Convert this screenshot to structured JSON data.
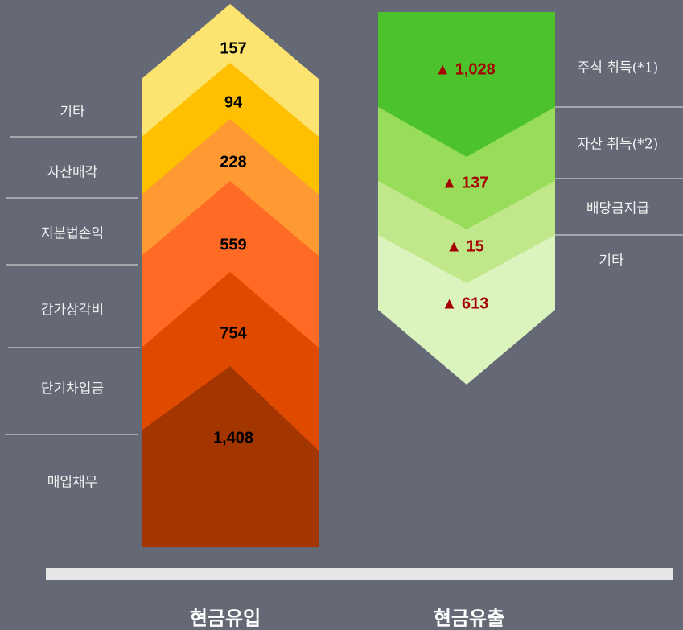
{
  "inflow": {
    "title": "현금유입",
    "items": [
      {
        "label": null,
        "value": "157"
      },
      {
        "label": "기타",
        "value": "94"
      },
      {
        "label": "자산매각",
        "value": "228"
      },
      {
        "label": "지분법손익",
        "value": "559"
      },
      {
        "label": "감가상각비",
        "value": "754"
      },
      {
        "label": "단기차입금",
        "value": "1,408"
      },
      {
        "label": "매입채무",
        "value": null
      }
    ]
  },
  "outflow": {
    "title": "현금유출",
    "items": [
      {
        "label": "주식 취득(*1)",
        "value": "▲ 1,028"
      },
      {
        "label": "자산 취득(*2)",
        "value": "▲ 137"
      },
      {
        "label": "배당금지급",
        "value": "▲ 15"
      },
      {
        "label": "기타",
        "value": "▲ 613"
      }
    ]
  }
}
